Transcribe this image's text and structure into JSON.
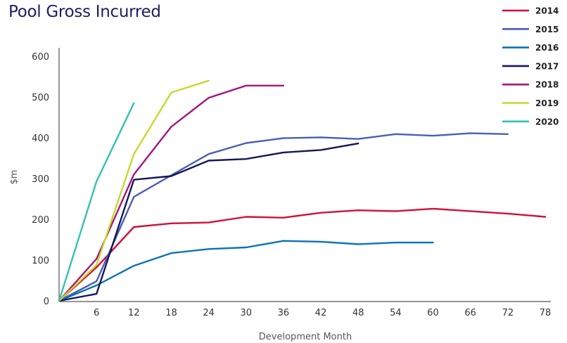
{
  "chart_data": {
    "type": "line",
    "title": "Pool Gross Incurred",
    "xlabel": "Development Month",
    "ylabel": "$m",
    "xlim": [
      0,
      78
    ],
    "ylim": [
      0,
      600
    ],
    "x_ticks": [
      6,
      12,
      18,
      24,
      30,
      36,
      42,
      48,
      54,
      60,
      66,
      72,
      78
    ],
    "y_ticks": [
      0,
      100,
      200,
      300,
      400,
      500,
      600
    ],
    "grid": false,
    "legend_position": "top-right",
    "series": [
      {
        "name": "2014",
        "color": "#d0103a",
        "x": [
          0,
          6,
          12,
          18,
          24,
          30,
          36,
          42,
          48,
          54,
          60,
          66,
          72,
          78
        ],
        "y": [
          0,
          82,
          181,
          190,
          192,
          206,
          204,
          216,
          222,
          220,
          226,
          220,
          214,
          206
        ]
      },
      {
        "name": "2015",
        "color": "#4a5fb4",
        "x": [
          0,
          6,
          12,
          18,
          24,
          30,
          36,
          42,
          48,
          54,
          60,
          66,
          72
        ],
        "y": [
          0,
          48,
          255,
          308,
          360,
          387,
          399,
          401,
          397,
          409,
          405,
          411,
          409
        ]
      },
      {
        "name": "2016",
        "color": "#0b72b5",
        "x": [
          0,
          6,
          12,
          18,
          24,
          30,
          36,
          42,
          48,
          54,
          60
        ],
        "y": [
          0,
          38,
          86,
          117,
          127,
          131,
          147,
          145,
          139,
          143,
          143
        ]
      },
      {
        "name": "2017",
        "color": "#15175a",
        "x": [
          0,
          6,
          12,
          18,
          24,
          30,
          36,
          42,
          48
        ],
        "y": [
          0,
          17,
          297,
          306,
          344,
          348,
          364,
          370,
          386
        ]
      },
      {
        "name": "2018",
        "color": "#a3167e",
        "x": [
          0,
          6,
          12,
          18,
          24,
          30,
          36
        ],
        "y": [
          0,
          103,
          310,
          427,
          498,
          528,
          528
        ]
      },
      {
        "name": "2019",
        "color": "#c5d92c",
        "x": [
          0,
          6,
          12,
          18,
          24
        ],
        "y": [
          0,
          88,
          360,
          511,
          540
        ]
      },
      {
        "name": "2020",
        "color": "#35c1b0",
        "x": [
          0,
          6,
          12
        ],
        "y": [
          0,
          293,
          485
        ]
      }
    ]
  }
}
